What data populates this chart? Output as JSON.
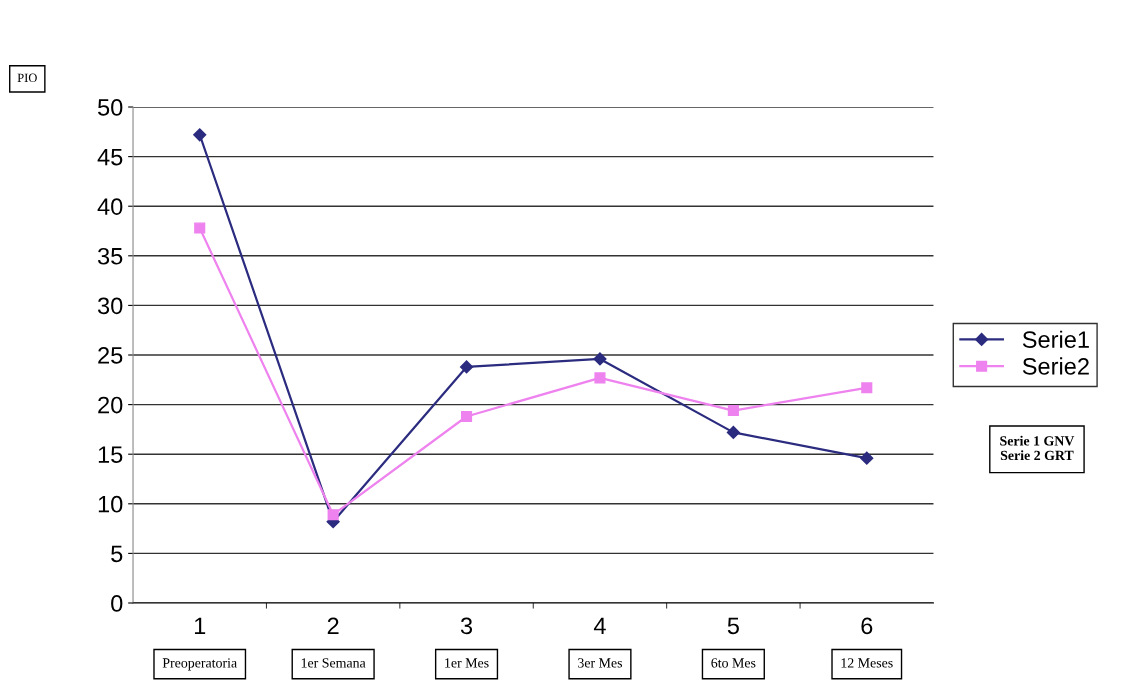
{
  "chart_data": {
    "type": "line",
    "categories": [
      "1",
      "2",
      "3",
      "4",
      "5",
      "6"
    ],
    "series": [
      {
        "name": "Serie1",
        "color": "#2b2b7f",
        "marker": "diamond",
        "values": [
          47.2,
          8.2,
          23.8,
          24.6,
          17.2,
          14.6
        ]
      },
      {
        "name": "Serie2",
        "color": "#ee82ee",
        "marker": "square",
        "values": [
          37.8,
          8.9,
          18.8,
          22.7,
          19.4,
          21.7
        ]
      }
    ],
    "ylim": [
      0,
      50
    ],
    "yticks": [
      0,
      5,
      10,
      15,
      20,
      25,
      30,
      35,
      40,
      45,
      50
    ],
    "grid": "y",
    "legend": "right",
    "line_style": "solid",
    "annotations": [
      "PIO",
      "Preoperatoria",
      "1er Semana",
      "1er Mes",
      "3er Mes",
      "6to Mes",
      "12 Meses",
      "Serie 1 GNV\nSerie 2 GRT"
    ]
  }
}
